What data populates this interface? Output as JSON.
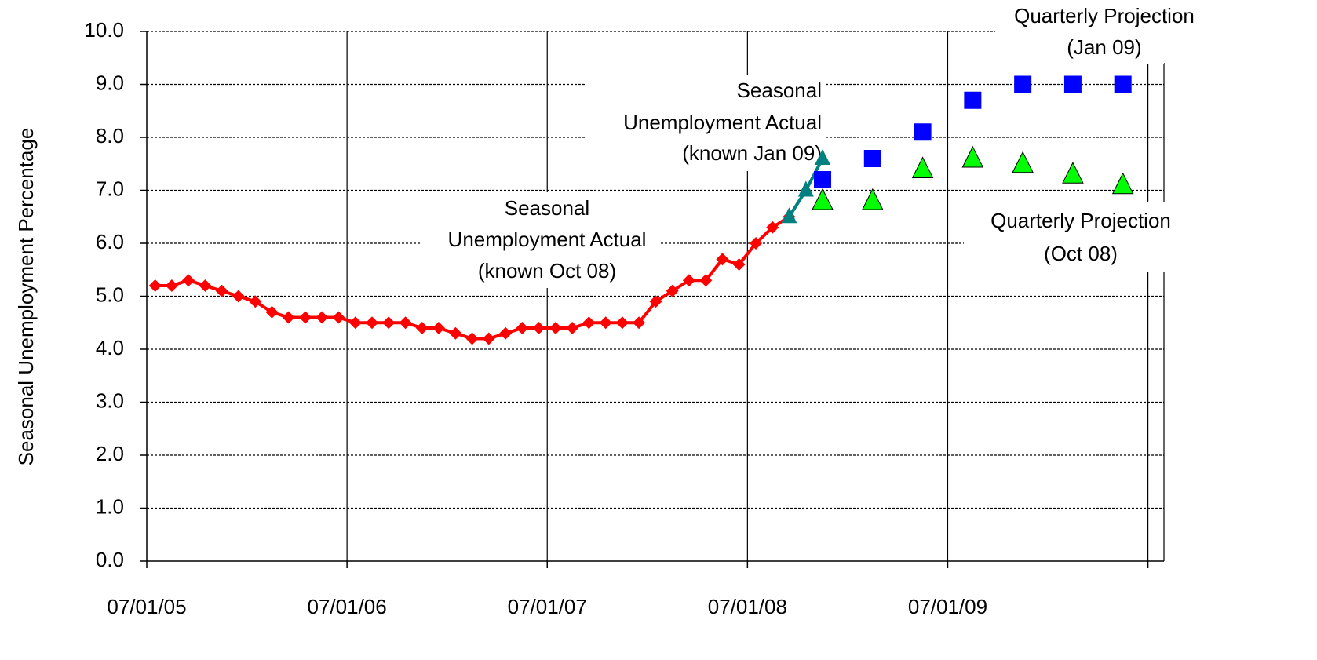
{
  "chart_data": {
    "type": "line",
    "y_label": "Seasonal Unemployment Percentage",
    "ylim": [
      0,
      10
    ],
    "yticks": [
      {
        "value": 0,
        "label": "0.0"
      },
      {
        "value": 1,
        "label": "1.0"
      },
      {
        "value": 2,
        "label": "2.0"
      },
      {
        "value": 3,
        "label": "3.0"
      },
      {
        "value": 4,
        "label": "4.0"
      },
      {
        "value": 5,
        "label": "5.0"
      },
      {
        "value": 6,
        "label": "6.0"
      },
      {
        "value": 7,
        "label": "7.0"
      },
      {
        "value": 8,
        "label": "8.0"
      },
      {
        "value": 9,
        "label": "9.0"
      },
      {
        "value": 10,
        "label": "10.0"
      }
    ],
    "xlim": [
      2005.5,
      2010.58
    ],
    "xticks": [
      {
        "value": 2005.5,
        "label": "07/01/05"
      },
      {
        "value": 2006.5,
        "label": "07/01/06"
      },
      {
        "value": 2007.5,
        "label": "07/01/07"
      },
      {
        "value": 2008.5,
        "label": "07/01/08"
      },
      {
        "value": 2009.5,
        "label": "07/01/09"
      },
      {
        "value": 2010.5,
        "label": null
      }
    ],
    "grid": true,
    "series": [
      {
        "color": "#ff0000",
        "marker": "diamond",
        "line": true,
        "x": [
          2005.542,
          2005.625,
          2005.708,
          2005.792,
          2005.875,
          2005.958,
          2006.042,
          2006.125,
          2006.208,
          2006.292,
          2006.375,
          2006.458,
          2006.542,
          2006.625,
          2006.708,
          2006.792,
          2006.875,
          2006.958,
          2007.042,
          2007.125,
          2007.208,
          2007.292,
          2007.375,
          2007.458,
          2007.542,
          2007.625,
          2007.708,
          2007.792,
          2007.875,
          2007.958,
          2008.042,
          2008.125,
          2008.208,
          2008.292,
          2008.375,
          2008.458,
          2008.542,
          2008.625,
          2008.708
        ],
        "values": [
          5.2,
          5.2,
          5.3,
          5.2,
          5.1,
          5.0,
          4.9,
          4.7,
          4.6,
          4.6,
          4.6,
          4.6,
          4.5,
          4.5,
          4.5,
          4.5,
          4.4,
          4.4,
          4.3,
          4.2,
          4.2,
          4.3,
          4.4,
          4.4,
          4.4,
          4.4,
          4.5,
          4.5,
          4.5,
          4.5,
          4.9,
          5.1,
          5.3,
          5.3,
          5.7,
          5.6,
          6.0,
          6.3,
          6.5
        ]
      },
      {
        "color": "#008080",
        "marker": "triangle",
        "line": true,
        "x": [
          2008.708,
          2008.792,
          2008.875
        ],
        "values": [
          6.5,
          7.0,
          7.6
        ]
      },
      {
        "color": "#0000ff",
        "marker": "square",
        "line": false,
        "x": [
          2008.875,
          2009.125,
          2009.375,
          2009.625,
          2009.875,
          2010.125,
          2010.375
        ],
        "values": [
          7.2,
          7.6,
          8.1,
          8.7,
          9.0,
          9.0,
          9.0
        ]
      },
      {
        "color": "#00ff00",
        "marker": "triangle",
        "line": false,
        "x": [
          2008.875,
          2009.125,
          2009.375,
          2009.625,
          2009.875,
          2010.125,
          2010.375
        ],
        "values": [
          6.8,
          6.8,
          7.4,
          7.6,
          7.5,
          7.3,
          7.1
        ]
      }
    ],
    "annotations": [
      {
        "lines": [
          "Seasonal",
          "Unemployment Actual",
          "(known Oct 08)"
        ]
      },
      {
        "lines": [
          "Seasonal",
          "Unemployment Actual",
          "(known Jan 09)"
        ]
      },
      {
        "lines": [
          "Quarterly Projection",
          "(Jan 09)"
        ]
      },
      {
        "lines": [
          "Quarterly Projection",
          "(Oct 08)"
        ]
      }
    ]
  }
}
